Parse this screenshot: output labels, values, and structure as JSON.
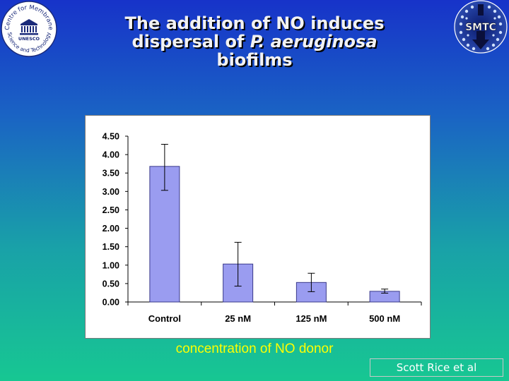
{
  "slide": {
    "title_line1": "The addition of NO induces",
    "title_line2_pre": "dispersal of ",
    "title_line2_italic": "P. aeruginosa",
    "title_line3": "biofilms",
    "logo_left": {
      "arc_text_top": "Centre for Membrane",
      "arc_text_bottom": "Science and Technology",
      "emblem_text": "UNESCO"
    },
    "logo_right": {
      "text": "SMTC"
    },
    "xaxis_label": "concentration of NO donor",
    "credit": "Scott Rice et al",
    "colors": {
      "background_top": "#1733c9",
      "background_bottom": "#17c792",
      "title": "#f2f2f2",
      "xaxis_label": "#ffff00",
      "bar_fill": "#9a9cf0",
      "bar_stroke": "#3a3a8a"
    }
  },
  "chart_data": {
    "type": "bar",
    "categories": [
      "Control",
      "25 nM",
      "125 nM",
      "500 nM"
    ],
    "values": [
      3.68,
      1.03,
      0.53,
      0.29
    ],
    "error_low": [
      3.03,
      0.43,
      0.28,
      0.24
    ],
    "error_high": [
      4.28,
      1.62,
      0.78,
      0.35
    ],
    "ylim": [
      0,
      4.5
    ],
    "yticks": [
      "0.00",
      "0.50",
      "1.00",
      "1.50",
      "2.00",
      "2.50",
      "3.00",
      "3.50",
      "4.00",
      "4.50"
    ],
    "ytick_values": [
      0,
      0.5,
      1,
      1.5,
      2,
      2.5,
      3,
      3.5,
      4,
      4.5
    ],
    "xlabel": "concentration of NO donor",
    "ylabel": "",
    "grid": false,
    "legend": false
  }
}
